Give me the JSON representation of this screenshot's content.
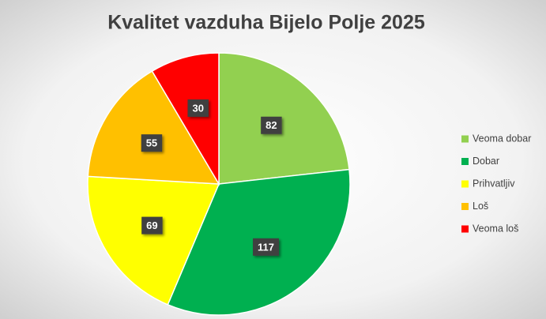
{
  "chart_data": {
    "type": "pie",
    "title": "Kvalitet vazduha Bijelo Polje 2025",
    "categories": [
      "Veoma dobar",
      "Dobar",
      "Prihvatljiv",
      "Loš",
      "Veoma loš"
    ],
    "values": [
      82,
      117,
      69,
      55,
      30
    ],
    "colors": [
      "#92d050",
      "#00b050",
      "#ffff00",
      "#ffc000",
      "#ff0000"
    ],
    "legend": "right"
  }
}
